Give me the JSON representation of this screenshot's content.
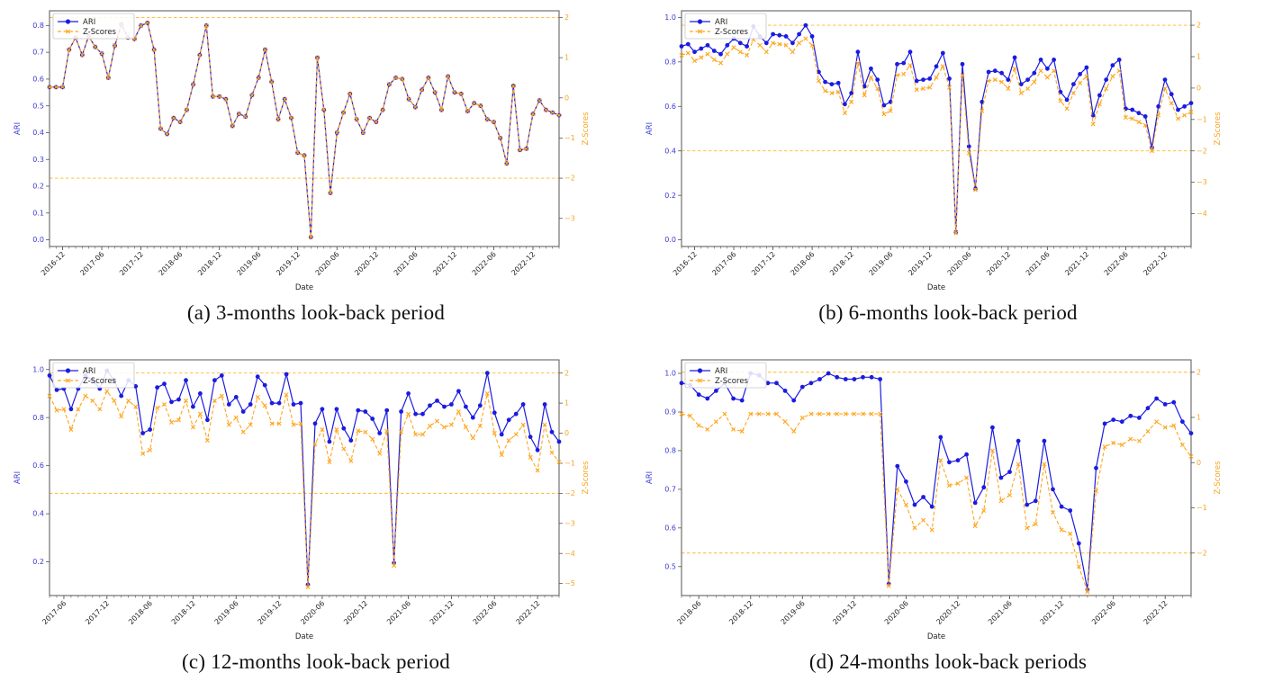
{
  "colors": {
    "ari_line": "#1b1be0",
    "z_line": "#ffa51c",
    "threshold": "#ffb728",
    "left_tick_text": "#3a3ad4",
    "right_tick_text": "#f5a623",
    "axis_border": "#555555",
    "xtick_text": "#222222"
  },
  "chart_data": [
    {
      "id": "a",
      "type": "line",
      "caption": "(a) 3-months look-back period",
      "xlabel": "Date",
      "legend": [
        "ARI",
        "Z-Scores"
      ],
      "left_axis": {
        "label": "ARI",
        "ticks": [
          0.0,
          0.1,
          0.2,
          0.3,
          0.4,
          0.5,
          0.6,
          0.7,
          0.8
        ],
        "lim": [
          -0.025,
          0.855
        ]
      },
      "right_axis": {
        "label": "Z-Scores",
        "ticks": [
          2,
          1,
          0,
          -1,
          -2,
          -3
        ],
        "mu": 0.53,
        "sigma": 0.15
      },
      "thresholds_z": [
        2,
        -2
      ],
      "x_tick_labels": [
        "2016-12",
        "2017-06",
        "2017-12",
        "2018-06",
        "2018-12",
        "2019-06",
        "2019-12",
        "2020-06",
        "2020-12",
        "2021-06",
        "2021-12",
        "2022-06",
        "2022-12"
      ],
      "x_tick_start_index": 2,
      "x_tick_step": 6,
      "series": [
        {
          "name": "ARI",
          "axis": "left",
          "marker": "circle",
          "style": "solid",
          "values": [
            0.57,
            0.57,
            0.57,
            0.71,
            0.755,
            0.69,
            0.76,
            0.72,
            0.695,
            0.605,
            0.725,
            0.805,
            0.755,
            0.75,
            0.8,
            0.81,
            0.71,
            0.415,
            0.395,
            0.455,
            0.44,
            0.485,
            0.58,
            0.69,
            0.8,
            0.535,
            0.535,
            0.525,
            0.425,
            0.47,
            0.46,
            0.54,
            0.605,
            0.71,
            0.59,
            0.45,
            0.525,
            0.455,
            0.325,
            0.315,
            0.01,
            0.68,
            0.485,
            0.175,
            0.4,
            0.475,
            0.545,
            0.45,
            0.4,
            0.455,
            0.44,
            0.485,
            0.58,
            0.605,
            0.6,
            0.525,
            0.495,
            0.56,
            0.605,
            0.55,
            0.485,
            0.61,
            0.55,
            0.545,
            0.48,
            0.51,
            0.5,
            0.45,
            0.44,
            0.38,
            0.285,
            0.575,
            0.335,
            0.34,
            0.47,
            0.52,
            0.485,
            0.475,
            0.465
          ]
        },
        {
          "name": "Z-Scores",
          "axis": "right",
          "marker": "x",
          "style": "dashed",
          "note": "z = (value - mu) / sigma; curve coincides with ARI in this panel",
          "values_ari_units": [
            0.57,
            0.57,
            0.57,
            0.71,
            0.755,
            0.69,
            0.76,
            0.72,
            0.695,
            0.605,
            0.725,
            0.805,
            0.755,
            0.75,
            0.8,
            0.81,
            0.71,
            0.415,
            0.395,
            0.455,
            0.44,
            0.485,
            0.58,
            0.69,
            0.8,
            0.535,
            0.535,
            0.525,
            0.425,
            0.47,
            0.46,
            0.54,
            0.605,
            0.71,
            0.59,
            0.45,
            0.525,
            0.455,
            0.325,
            0.315,
            0.01,
            0.68,
            0.485,
            0.175,
            0.4,
            0.475,
            0.545,
            0.45,
            0.4,
            0.455,
            0.44,
            0.485,
            0.58,
            0.605,
            0.6,
            0.525,
            0.495,
            0.56,
            0.605,
            0.55,
            0.485,
            0.61,
            0.55,
            0.545,
            0.48,
            0.51,
            0.5,
            0.45,
            0.44,
            0.38,
            0.285,
            0.575,
            0.335,
            0.34,
            0.47,
            0.52,
            0.485,
            0.475,
            0.465
          ]
        }
      ]
    },
    {
      "id": "b",
      "type": "line",
      "caption": "(b) 6-months look-back period",
      "xlabel": "Date",
      "legend": [
        "ARI",
        "Z-Scores"
      ],
      "left_axis": {
        "label": "ARI",
        "ticks": [
          0.0,
          0.2,
          0.4,
          0.6,
          0.8,
          1.0
        ],
        "lim": [
          -0.03,
          1.03
        ]
      },
      "right_axis": {
        "label": "Z-Scores",
        "ticks": [
          2,
          1,
          0,
          -1,
          -2,
          -3,
          -4
        ],
        "mu": 0.6825,
        "sigma": 0.14125
      },
      "thresholds_z": [
        2,
        -2
      ],
      "x_tick_labels": [
        "2016-12",
        "2017-06",
        "2017-12",
        "2018-06",
        "2018-12",
        "2019-06",
        "2019-12",
        "2020-06",
        "2020-12",
        "2021-06",
        "2021-12",
        "2022-06",
        "2022-12"
      ],
      "x_tick_start_index": 2,
      "x_tick_step": 6,
      "series": [
        {
          "name": "ARI",
          "axis": "left",
          "marker": "circle",
          "style": "solid",
          "values": [
            0.87,
            0.88,
            0.845,
            0.86,
            0.875,
            0.85,
            0.835,
            0.875,
            0.905,
            0.885,
            0.87,
            0.96,
            0.915,
            0.885,
            0.925,
            0.92,
            0.915,
            0.885,
            0.925,
            0.965,
            0.915,
            0.755,
            0.71,
            0.7,
            0.705,
            0.61,
            0.66,
            0.845,
            0.69,
            0.77,
            0.72,
            0.605,
            0.62,
            0.79,
            0.795,
            0.845,
            0.715,
            0.72,
            0.725,
            0.78,
            0.84,
            0.725,
            0.035,
            0.79,
            0.42,
            0.23,
            0.62,
            0.755,
            0.76,
            0.75,
            0.72,
            0.82,
            0.7,
            0.72,
            0.75,
            0.81,
            0.77,
            0.81,
            0.665,
            0.63,
            0.7,
            0.745,
            0.775,
            0.56,
            0.65,
            0.72,
            0.785,
            0.81,
            0.59,
            0.585,
            0.57,
            0.555,
            0.415,
            0.6,
            0.72,
            0.655,
            0.585,
            0.6,
            0.615
          ]
        },
        {
          "name": "Z-Scores",
          "axis": "right",
          "marker": "x",
          "style": "dashed",
          "note": "z = (value - mu) / sigma",
          "values_ari_units": [
            0.83,
            0.84,
            0.805,
            0.82,
            0.835,
            0.81,
            0.795,
            0.835,
            0.865,
            0.845,
            0.83,
            0.9,
            0.875,
            0.845,
            0.885,
            0.88,
            0.875,
            0.845,
            0.885,
            0.905,
            0.875,
            0.715,
            0.67,
            0.66,
            0.665,
            0.57,
            0.62,
            0.795,
            0.65,
            0.73,
            0.68,
            0.565,
            0.58,
            0.74,
            0.745,
            0.785,
            0.675,
            0.68,
            0.685,
            0.73,
            0.78,
            0.685,
            0.03,
            0.74,
            0.39,
            0.225,
            0.58,
            0.715,
            0.72,
            0.71,
            0.68,
            0.77,
            0.66,
            0.68,
            0.71,
            0.76,
            0.73,
            0.76,
            0.625,
            0.59,
            0.66,
            0.705,
            0.735,
            0.52,
            0.61,
            0.68,
            0.735,
            0.76,
            0.55,
            0.545,
            0.53,
            0.515,
            0.4,
            0.56,
            0.68,
            0.615,
            0.545,
            0.56,
            0.575
          ]
        }
      ]
    },
    {
      "id": "c",
      "type": "line",
      "caption": "(c) 12-months look-back period",
      "xlabel": "Date",
      "legend": [
        "ARI",
        "Z-Scores"
      ],
      "left_axis": {
        "label": "ARI",
        "ticks": [
          0.2,
          0.4,
          0.6,
          0.8,
          1.0
        ],
        "lim": [
          0.06,
          1.04
        ]
      },
      "right_axis": {
        "label": "Z-Scores",
        "ticks": [
          2,
          1,
          0,
          -1,
          -2,
          -3,
          -4,
          -5
        ],
        "mu": 0.735,
        "sigma": 0.125
      },
      "thresholds_z": [
        2,
        -2
      ],
      "x_tick_labels": [
        "2017-06",
        "2017-12",
        "2018-06",
        "2018-12",
        "2019-06",
        "2019-12",
        "2020-06",
        "2020-12",
        "2021-06",
        "2021-12",
        "2022-06",
        "2022-12"
      ],
      "x_tick_start_index": 2,
      "x_tick_step": 6,
      "series": [
        {
          "name": "ARI",
          "axis": "left",
          "marker": "circle",
          "style": "solid",
          "values": [
            0.975,
            0.915,
            0.92,
            0.835,
            0.92,
            0.975,
            0.955,
            0.92,
            0.995,
            0.955,
            0.89,
            0.955,
            0.93,
            0.735,
            0.75,
            0.925,
            0.94,
            0.865,
            0.875,
            0.955,
            0.845,
            0.9,
            0.79,
            0.955,
            0.975,
            0.855,
            0.885,
            0.825,
            0.855,
            0.97,
            0.935,
            0.86,
            0.86,
            0.98,
            0.855,
            0.86,
            0.105,
            0.775,
            0.835,
            0.7,
            0.835,
            0.755,
            0.705,
            0.83,
            0.825,
            0.795,
            0.735,
            0.83,
            0.195,
            0.825,
            0.9,
            0.815,
            0.815,
            0.85,
            0.87,
            0.845,
            0.855,
            0.91,
            0.845,
            0.8,
            0.85,
            0.985,
            0.82,
            0.73,
            0.79,
            0.815,
            0.855,
            0.72,
            0.665,
            0.855,
            0.74,
            0.7
          ]
        },
        {
          "name": "Z-Scores",
          "axis": "right",
          "marker": "x",
          "style": "dashed",
          "note": "z = (value - mu) / sigma",
          "values_ari_units": [
            0.89,
            0.83,
            0.835,
            0.75,
            0.835,
            0.89,
            0.87,
            0.835,
            0.91,
            0.87,
            0.805,
            0.87,
            0.845,
            0.65,
            0.665,
            0.84,
            0.855,
            0.78,
            0.79,
            0.87,
            0.76,
            0.815,
            0.705,
            0.87,
            0.89,
            0.77,
            0.8,
            0.74,
            0.77,
            0.885,
            0.85,
            0.775,
            0.775,
            0.895,
            0.77,
            0.775,
            0.095,
            0.69,
            0.75,
            0.615,
            0.75,
            0.67,
            0.62,
            0.745,
            0.74,
            0.71,
            0.65,
            0.745,
            0.185,
            0.74,
            0.815,
            0.73,
            0.73,
            0.765,
            0.785,
            0.76,
            0.77,
            0.825,
            0.76,
            0.715,
            0.765,
            0.9,
            0.735,
            0.645,
            0.705,
            0.73,
            0.77,
            0.635,
            0.58,
            0.77,
            0.655,
            0.615
          ]
        }
      ]
    },
    {
      "id": "d",
      "type": "line",
      "caption": "(d) 24-months look-back periods",
      "xlabel": "Date",
      "legend": [
        "ARI",
        "Z-Scores"
      ],
      "left_axis": {
        "label": "ARI",
        "ticks": [
          0.5,
          0.6,
          0.7,
          0.8,
          0.9,
          1.0
        ],
        "lim": [
          0.425,
          1.035
        ]
      },
      "right_axis": {
        "label": "Z-Scores",
        "ticks": [
          2,
          1,
          0,
          -1,
          -2
        ],
        "mu": 0.769,
        "sigma": 0.117
      },
      "thresholds_z": [
        2,
        -2
      ],
      "x_tick_labels": [
        "2018-06",
        "2018-12",
        "2019-06",
        "2019-12",
        "2020-06",
        "2020-12",
        "2021-06",
        "2021-12",
        "2022-06",
        "2022-12"
      ],
      "x_tick_start_index": 2,
      "x_tick_step": 6,
      "series": [
        {
          "name": "ARI",
          "axis": "left",
          "marker": "circle",
          "style": "solid",
          "values": [
            0.975,
            0.97,
            0.945,
            0.935,
            0.955,
            0.975,
            0.935,
            0.93,
            1.0,
            0.995,
            0.975,
            0.975,
            0.955,
            0.93,
            0.965,
            0.975,
            0.985,
            1.0,
            0.99,
            0.985,
            0.985,
            0.99,
            0.99,
            0.985,
            0.455,
            0.76,
            0.72,
            0.66,
            0.68,
            0.655,
            0.835,
            0.77,
            0.775,
            0.79,
            0.665,
            0.705,
            0.86,
            0.73,
            0.745,
            0.825,
            0.66,
            0.67,
            0.825,
            0.7,
            0.655,
            0.645,
            0.56,
            0.44,
            0.755,
            0.87,
            0.88,
            0.875,
            0.89,
            0.885,
            0.91,
            0.935,
            0.92,
            0.925,
            0.875,
            0.845
          ]
        },
        {
          "name": "Z-Scores",
          "axis": "right",
          "marker": "x",
          "style": "dashed",
          "note": "z = (value - mu) / sigma",
          "values_ari_units": [
            0.895,
            0.89,
            0.865,
            0.855,
            0.875,
            0.895,
            0.855,
            0.85,
            0.895,
            0.895,
            0.895,
            0.895,
            0.875,
            0.85,
            0.885,
            0.895,
            0.895,
            0.895,
            0.895,
            0.895,
            0.895,
            0.895,
            0.895,
            0.895,
            0.45,
            0.7,
            0.66,
            0.6,
            0.62,
            0.595,
            0.775,
            0.71,
            0.715,
            0.73,
            0.605,
            0.645,
            0.8,
            0.67,
            0.685,
            0.765,
            0.6,
            0.61,
            0.765,
            0.64,
            0.595,
            0.585,
            0.5,
            0.435,
            0.695,
            0.81,
            0.82,
            0.815,
            0.83,
            0.825,
            0.85,
            0.875,
            0.86,
            0.865,
            0.815,
            0.785
          ]
        }
      ]
    }
  ]
}
